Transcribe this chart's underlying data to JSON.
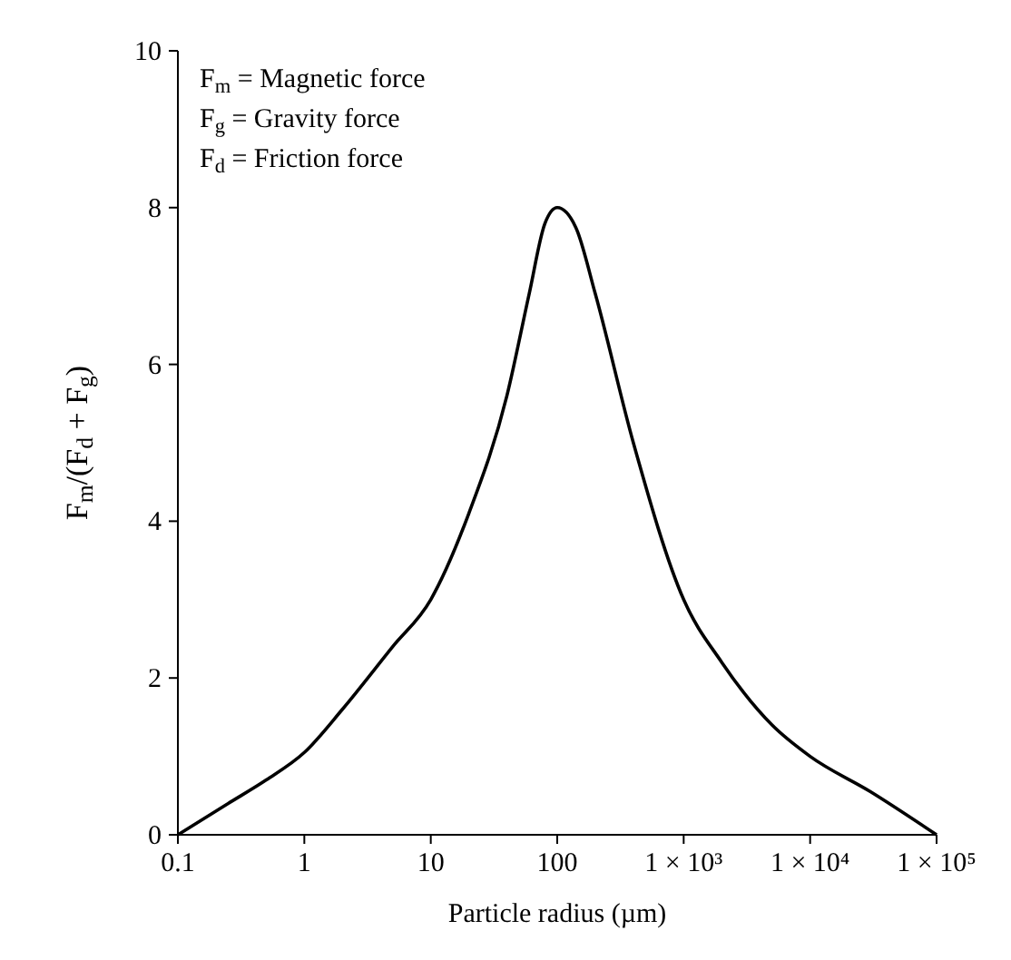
{
  "chart_data": {
    "type": "line",
    "xlabel": "Particle radius (µm)",
    "ylabel": "F$_{m}$/(F$_{d}$ + F$_{g}$)",
    "annotations": [
      "F$_{m}$ = Magnetic force",
      "F$_{g}$ = Gravity force",
      "F$_{d}$ = Friction force"
    ],
    "log": "x",
    "xlim": [
      0.1,
      100000
    ],
    "ylim": [
      0,
      10
    ],
    "xticks": [
      0.1,
      1,
      10,
      100,
      {
        "value": 1000,
        "label": "1 × 10³"
      },
      {
        "value": 10000,
        "label": "1 × 10⁴"
      },
      {
        "value": 100000,
        "label": "1 × 10⁵"
      }
    ],
    "yticks": [
      0,
      2,
      4,
      6,
      8,
      10
    ],
    "grid": false,
    "marker": "none",
    "line_style": "solid",
    "series": [
      {
        "color": "#000000",
        "x": [
          0.1,
          0.25,
          0.5,
          1,
          2,
          5,
          10,
          20,
          40,
          60,
          80,
          100,
          140,
          200,
          400,
          1000,
          2000,
          5000,
          10000,
          30000,
          100000
        ],
        "values": [
          0,
          0.4,
          0.7,
          1.05,
          1.6,
          2.4,
          3.0,
          4.1,
          5.6,
          6.9,
          7.8,
          8.0,
          7.75,
          6.9,
          5.0,
          3.0,
          2.2,
          1.4,
          1.0,
          0.55,
          0
        ]
      }
    ]
  }
}
